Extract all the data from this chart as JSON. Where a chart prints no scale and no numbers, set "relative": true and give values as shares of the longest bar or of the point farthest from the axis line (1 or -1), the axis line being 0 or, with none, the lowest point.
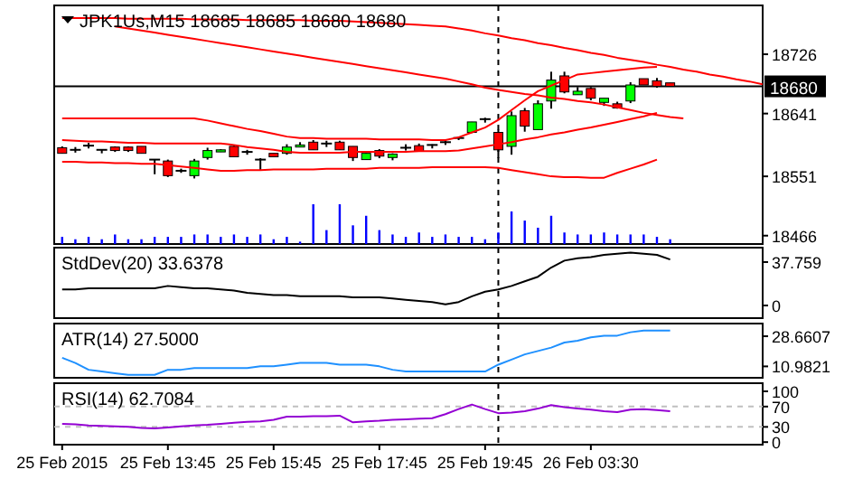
{
  "chart_data": [
    {
      "type": "candlestick",
      "title": "JPK1Us,M15 18685 18685 18680 18680",
      "categories": [
        null,
        null,
        null,
        null,
        null,
        null,
        null,
        null,
        null,
        null,
        null,
        null,
        null,
        null,
        null,
        null,
        null,
        null,
        null,
        null,
        null,
        null,
        null,
        null,
        null,
        null,
        null,
        null,
        null,
        null,
        null,
        null,
        null,
        null,
        null,
        null,
        null,
        null,
        null,
        null,
        null,
        null,
        null,
        null,
        null,
        null,
        null,
        null,
        null,
        null,
        null,
        null,
        null,
        null
      ],
      "ohlc": [
        [
          18592,
          18594,
          18584,
          18584
        ],
        [
          18589,
          18593,
          18585,
          18589
        ],
        [
          18595,
          18599,
          18591,
          18595
        ],
        [
          18589,
          18589,
          18584,
          18589
        ],
        [
          18593,
          18594,
          18586,
          18588
        ],
        [
          18593,
          18594,
          18586,
          18588
        ],
        [
          18594,
          18594,
          18584,
          18584
        ],
        [
          18575,
          18575,
          18554,
          18575
        ],
        [
          18573,
          18575,
          18550,
          18552
        ],
        [
          18559,
          18562,
          18556,
          18559
        ],
        [
          18552,
          18576,
          18548,
          18573
        ],
        [
          18578,
          18592,
          18575,
          18588
        ],
        [
          18586,
          18590,
          18586,
          18589
        ],
        [
          18594,
          18596,
          18579,
          18579
        ],
        [
          18586,
          18589,
          18582,
          18586
        ],
        [
          18575,
          18577,
          18560,
          18575
        ],
        [
          18584,
          18584,
          18579,
          18579
        ],
        [
          18584,
          18597,
          18582,
          18593
        ],
        [
          18593,
          18600,
          18593,
          18596
        ],
        [
          18600,
          18603,
          18589,
          18589
        ],
        [
          18598,
          18602,
          18593,
          18598
        ],
        [
          18600,
          18602,
          18589,
          18589
        ],
        [
          18594,
          18594,
          18573,
          18578
        ],
        [
          18575,
          18587,
          18575,
          18584
        ],
        [
          18588,
          18590,
          18577,
          18580
        ],
        [
          18578,
          18584,
          18574,
          18583
        ],
        [
          18592,
          18597,
          18588,
          18592
        ],
        [
          18595,
          18598,
          18587,
          18587
        ],
        [
          18596,
          18597,
          18591,
          18596
        ],
        [
          18600,
          18604,
          18596,
          18600
        ],
        [
          18606,
          18608,
          18603,
          18606
        ],
        [
          18614,
          18629,
          18613,
          18629
        ],
        [
          18633,
          18635,
          18628,
          18633
        ],
        [
          18614,
          18618,
          18577,
          18589
        ],
        [
          18594,
          18644,
          18582,
          18638
        ],
        [
          18645,
          18649,
          18615,
          18623
        ],
        [
          18618,
          18660,
          18618,
          18655
        ],
        [
          18659,
          18701,
          18648,
          18689
        ],
        [
          18695,
          18701,
          18670,
          18672
        ],
        [
          18668,
          18679,
          18668,
          18673
        ],
        [
          18677,
          18679,
          18660,
          18663
        ],
        [
          18657,
          18663,
          18652,
          18663
        ],
        [
          18655,
          18658,
          18648,
          18649
        ],
        [
          18659,
          18686,
          18656,
          18682
        ],
        [
          18691,
          18691,
          18682,
          18682
        ],
        [
          18688,
          18692,
          18678,
          18680
        ],
        [
          18685,
          18685,
          18680,
          18680
        ],
        null,
        null,
        null,
        null,
        null,
        null,
        null
      ],
      "colors": [
        "#ff0000",
        "#000000",
        "#000000",
        "#000000",
        "#ff0000",
        "#ff0000",
        "#ff0000",
        "#000000",
        "#ff0000",
        "#000000",
        "#00ff00",
        "#00ff00",
        "#00ff00",
        "#ff0000",
        "#000000",
        "#000000",
        "#ff0000",
        "#00ff00",
        "#00ff00",
        "#ff0000",
        "#000000",
        "#ff0000",
        "#ff0000",
        "#00ff00",
        "#ff0000",
        "#00ff00",
        "#000000",
        "#ff0000",
        "#000000",
        "#000000",
        "#000000",
        "#00ff00",
        "#000000",
        "#ff0000",
        "#00ff00",
        "#ff0000",
        "#00ff00",
        "#00ff00",
        "#ff0000",
        "#00ff00",
        "#ff0000",
        "#00ff00",
        "#ff0000",
        "#00ff00",
        "#ff0000",
        "#ff0000",
        "#ff0000",
        null,
        null,
        null,
        null,
        null,
        null,
        null
      ],
      "series": [
        {
          "type": "line",
          "color": "#ff0000",
          "values": [
            18778,
            18778,
            18778,
            18778,
            18778,
            18777,
            18777,
            18777,
            18777,
            18777,
            18776,
            18776,
            18776,
            18776,
            18775,
            18775,
            18775,
            18775,
            18775,
            18774,
            18774,
            18774,
            18773,
            18772,
            18771,
            18770,
            18769,
            18768,
            18767,
            18766,
            18763,
            18760,
            18756,
            18753,
            18749,
            18746,
            18742,
            18739,
            18735,
            18732,
            18728,
            18725,
            18721,
            18718,
            18715,
            18711,
            18708,
            18704,
            18701,
            18697,
            18694,
            18690,
            18687,
            18683
          ]
        },
        {
          "type": "line",
          "color": "#ff0000",
          "values": [
            null,
            null,
            null,
            null,
            18766,
            18763,
            18760,
            18757,
            18754,
            18751,
            18748,
            18745,
            18742,
            18739,
            18736,
            18733,
            18730,
            18727,
            18724,
            18721,
            18718,
            18715,
            18712,
            18709,
            18706,
            18703,
            18700,
            18697,
            18694,
            18691,
            18687,
            18683,
            18678,
            18675,
            18672,
            18669,
            18667,
            18664,
            18662,
            18659,
            18657,
            18654,
            18650,
            18646,
            18642,
            18639,
            18636,
            18634,
            null,
            null,
            null,
            null,
            null,
            null
          ]
        },
        {
          "type": "line",
          "color": "#ff0000",
          "values": [
            18634,
            18634,
            18634,
            18634,
            18634,
            18634,
            18634,
            18634,
            18634,
            18634,
            18634,
            18631,
            18627,
            18623,
            18619,
            18616,
            18612,
            18608,
            18606,
            18606,
            18605,
            18605,
            18605,
            18605,
            18604,
            18604,
            18604,
            18604,
            18603,
            18603,
            18607,
            18614,
            18621,
            18632,
            18646,
            18660,
            18673,
            18681,
            18689,
            18697,
            18699,
            18701,
            18703,
            18705,
            18707,
            18708,
            null,
            null,
            null,
            null,
            null,
            null,
            null,
            null
          ]
        },
        {
          "type": "line",
          "color": "#ff0000",
          "values": [
            18603,
            18602,
            18601,
            18601,
            18600,
            18599,
            18599,
            18598,
            18598,
            18598,
            18598,
            18598,
            18598,
            18596,
            18593,
            18591,
            18589,
            18586,
            18585,
            18585,
            18585,
            18585,
            18586,
            18586,
            18586,
            18586,
            18586,
            18587,
            18587,
            18587,
            18588,
            18591,
            18594,
            18597,
            18600,
            18604,
            18607,
            18611,
            18614,
            18618,
            18621,
            18625,
            18629,
            18633,
            18637,
            18642,
            null,
            null,
            null,
            null,
            null,
            null,
            null,
            null
          ]
        },
        {
          "type": "line",
          "color": "#ff0000",
          "values": [
            18572,
            18572,
            18571,
            18571,
            18570,
            18570,
            18569,
            18569,
            18567,
            18565,
            18563,
            18561,
            18559,
            18559,
            18560,
            18560,
            18561,
            18561,
            18561,
            18561,
            18562,
            18562,
            18562,
            18562,
            18563,
            18563,
            18563,
            18563,
            18564,
            18564,
            18564,
            18564,
            18564,
            18563,
            18560,
            18557,
            18554,
            18551,
            18550,
            18550,
            18549,
            18549,
            18556,
            18562,
            18568,
            18575,
            null,
            null,
            null,
            null,
            null,
            null,
            null,
            null
          ]
        }
      ],
      "ylim": [
        18454,
        18796
      ],
      "yticks": [
        18466,
        18551,
        18641,
        18726
      ],
      "tick_labels": "y",
      "ref_lines": [
        {
          "axis": "y",
          "value": 18680,
          "label": "18680",
          "color": "#000000",
          "line_style": "solid"
        }
      ]
    },
    {
      "type": "bar",
      "relative": true,
      "color": "#0000ff",
      "categories": [
        null,
        null,
        null,
        null,
        null,
        null,
        null,
        null,
        null,
        null,
        null,
        null,
        null,
        null,
        null,
        null,
        null,
        null,
        null,
        null,
        null,
        null,
        null,
        null,
        null,
        null,
        null,
        null,
        null,
        null,
        null,
        null,
        null,
        null,
        null,
        null,
        null,
        null,
        null,
        null,
        null,
        null,
        null,
        null,
        null,
        null,
        null,
        null,
        null,
        null,
        null,
        null,
        null,
        null
      ],
      "values": [
        0.18,
        0.12,
        0.18,
        0.12,
        0.24,
        0.12,
        0.12,
        0.18,
        0.18,
        0.18,
        0.24,
        0.24,
        0.18,
        0.24,
        0.18,
        0.24,
        0.12,
        0.18,
        0.06,
        1,
        0.35,
        1,
        0.47,
        0.71,
        0.35,
        0.24,
        0.18,
        0.29,
        0.18,
        0.24,
        0.18,
        0.18,
        0.12,
        0.29,
        0.82,
        0.59,
        0.41,
        0.71,
        0.29,
        0.24,
        0.24,
        0.29,
        0.24,
        0.24,
        0.24,
        0.18,
        0.12,
        null,
        null,
        null,
        null,
        null,
        null,
        null
      ],
      "tick_labels": false
    },
    {
      "type": "line",
      "title": "StdDev(20) 33.6378",
      "color": "#000000",
      "categories": [
        null,
        null,
        null,
        null,
        null,
        null,
        null,
        null,
        null,
        null,
        null,
        null,
        null,
        null,
        null,
        null,
        null,
        null,
        null,
        null,
        null,
        null,
        null,
        null,
        null,
        null,
        null,
        null,
        null,
        null,
        null,
        null,
        null,
        null,
        null,
        null,
        null,
        null,
        null,
        null,
        null,
        null,
        null,
        null,
        null,
        null,
        null,
        null,
        null,
        null,
        null,
        null,
        null,
        null
      ],
      "values": [
        14,
        14,
        15,
        15,
        15,
        15,
        15,
        15,
        17,
        16,
        15,
        15,
        14,
        13,
        11,
        10,
        9,
        9,
        8,
        8,
        8,
        8,
        7,
        7,
        7,
        6,
        5,
        4,
        3,
        1,
        3,
        8,
        12,
        14,
        17,
        21,
        25,
        33,
        39,
        41,
        42,
        44,
        45,
        46,
        45,
        44,
        40,
        null,
        null,
        null,
        null,
        null,
        null,
        null
      ],
      "ylim": [
        -11,
        50.3
      ],
      "yticks": [
        37.759,
        0
      ],
      "tick_labels": "y"
    },
    {
      "type": "line",
      "title": "ATR(14) 27.5000",
      "color": "#1e90ff",
      "categories": [
        null,
        null,
        null,
        null,
        null,
        null,
        null,
        null,
        null,
        null,
        null,
        null,
        null,
        null,
        null,
        null,
        null,
        null,
        null,
        null,
        null,
        null,
        null,
        null,
        null,
        null,
        null,
        null,
        null,
        null,
        null,
        null,
        null,
        null,
        null,
        null,
        null,
        null,
        null,
        null,
        null,
        null,
        null,
        null,
        null,
        null,
        null,
        null,
        null,
        null,
        null,
        null,
        null,
        null
      ],
      "values": [
        16,
        13,
        9,
        8,
        7,
        6,
        6,
        6,
        9,
        9,
        10,
        10,
        10,
        10,
        10,
        11,
        11,
        12,
        13,
        13,
        13,
        12,
        12,
        12,
        11,
        9,
        8,
        8,
        8,
        8,
        8,
        8,
        8,
        12,
        15,
        18,
        20,
        22,
        25,
        26,
        28,
        29,
        29,
        31,
        32,
        32,
        32,
        null,
        null,
        null,
        null,
        null,
        null,
        null
      ],
      "ylim": [
        4.3,
        36.1
      ],
      "yticks": [
        28.6607,
        10.9821
      ],
      "tick_labels": "y"
    },
    {
      "type": "line",
      "title": "RSI(14) 62.7084",
      "color": "#9400d3",
      "categories": [
        "25 Feb 2015",
        null,
        null,
        null,
        null,
        null,
        null,
        null,
        "25 Feb 13:45",
        null,
        null,
        null,
        null,
        null,
        null,
        null,
        "25 Feb 15:45",
        null,
        null,
        null,
        null,
        null,
        null,
        null,
        "25 Feb 17:45",
        null,
        null,
        null,
        null,
        null,
        null,
        null,
        "25 Feb 19:45",
        null,
        null,
        null,
        null,
        null,
        null,
        null,
        "26 Feb 03:30",
        null,
        null,
        null,
        null,
        null,
        null,
        null,
        null,
        null,
        null,
        null,
        null,
        null
      ],
      "values": [
        36,
        35,
        33,
        32,
        31,
        30,
        28,
        27,
        29,
        31,
        33,
        34,
        36,
        38,
        40,
        41,
        44,
        50,
        50,
        51,
        51,
        52,
        39,
        41,
        42,
        44,
        45,
        46,
        47,
        55,
        65,
        74,
        65,
        57,
        58,
        61,
        66,
        73,
        69,
        66,
        64,
        61,
        59,
        64,
        65,
        63,
        61,
        null,
        null,
        null,
        null,
        null,
        null,
        null
      ],
      "ylim": [
        -5,
        116
      ],
      "yticks": [
        100,
        70,
        30,
        0
      ],
      "ref_lines": [
        {
          "axis": "y",
          "value": 70,
          "color": "#c0c0c0",
          "line_style": "dashed"
        },
        {
          "axis": "y",
          "value": 30,
          "color": "#c0c0c0",
          "line_style": "dashed"
        }
      ]
    }
  ]
}
